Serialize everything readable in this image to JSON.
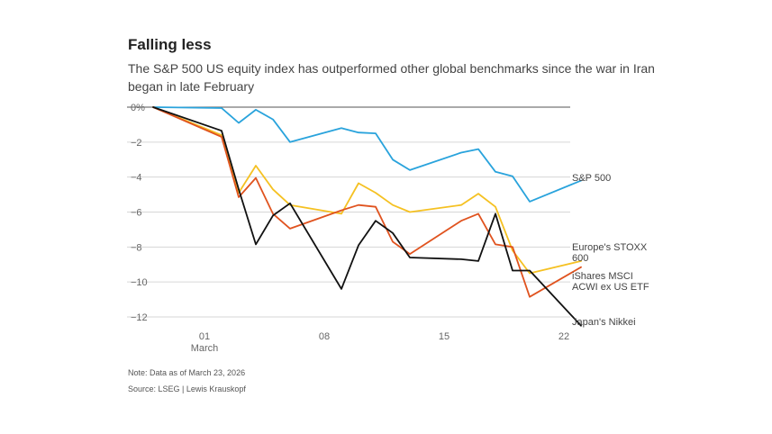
{
  "header": {
    "title": "Falling less",
    "subtitle": "The S&P 500 US equity index has outperformed other global benchmarks since the war in Iran began in late February"
  },
  "footer": {
    "note": "Note: Data as of March 23, 2026",
    "source": "Source: LSEG | Lewis Krauskopf"
  },
  "chart_data": {
    "type": "line",
    "title": "Falling less",
    "xlabel": "",
    "ylabel": "",
    "x": [
      "Feb 27",
      "Mar 2",
      "Mar 3",
      "Mar 4",
      "Mar 5",
      "Mar 6",
      "Mar 9",
      "Mar 10",
      "Mar 11",
      "Mar 12",
      "Mar 13",
      "Mar 16",
      "Mar 17",
      "Mar 18",
      "Mar 19",
      "Mar 20",
      "Mar 23"
    ],
    "day_index": [
      -2,
      2,
      3,
      4,
      5,
      6,
      9,
      10,
      11,
      12,
      13,
      16,
      17,
      18,
      19,
      20,
      23
    ],
    "xlim": [
      -3,
      24
    ],
    "ylim": [
      -12,
      0
    ],
    "y_ticks": [
      0,
      -2,
      -4,
      -6,
      -8,
      -10,
      -12
    ],
    "y_tick_labels": [
      "0%",
      "−2",
      "−4",
      "−6",
      "−8",
      "−10",
      "−12"
    ],
    "x_ticks": [
      1,
      8,
      15,
      22
    ],
    "x_tick_labels": [
      "01",
      "08",
      "15",
      "22"
    ],
    "x_tick_sublabel": "March",
    "series": [
      {
        "name": "S&P 500",
        "label_lines": [
          "S&P 500"
        ],
        "color": "#29a3dc",
        "values": [
          0,
          -0.05,
          -0.9,
          -0.15,
          -0.7,
          -2.0,
          -1.2,
          -1.45,
          -1.5,
          -3.0,
          -3.6,
          -2.6,
          -2.4,
          -3.7,
          -3.95,
          -5.4,
          -4.2
        ]
      },
      {
        "name": "Europe's STOXX 600",
        "label_lines": [
          "Europe's STOXX",
          "600"
        ],
        "color": "#f5c122",
        "values": [
          0,
          -1.6,
          -4.9,
          -3.35,
          -4.7,
          -5.6,
          -6.1,
          -4.35,
          -4.9,
          -5.6,
          -6.0,
          -5.6,
          -4.95,
          -5.7,
          -8.2,
          -9.5,
          -8.8
        ]
      },
      {
        "name": "iShares MSCI ACWI ex US ETF",
        "label_lines": [
          "iShares MSCI",
          "ACWI ex US ETF"
        ],
        "color": "#e0531f",
        "values": [
          0,
          -1.7,
          -5.15,
          -4.05,
          -6.1,
          -6.95,
          -5.9,
          -5.6,
          -5.7,
          -7.7,
          -8.4,
          -6.5,
          -6.1,
          -7.85,
          -8.0,
          -10.85,
          -9.15
        ]
      },
      {
        "name": "Japan's Nikkei",
        "label_lines": [
          "Japan's Nikkei"
        ],
        "color": "#111111",
        "values": [
          0,
          -1.35,
          -4.7,
          -7.85,
          -6.2,
          -5.5,
          -10.4,
          -7.9,
          -6.5,
          -7.2,
          -8.6,
          -8.7,
          -8.8,
          -6.1,
          -9.35,
          -9.35,
          -12.5
        ]
      }
    ]
  }
}
